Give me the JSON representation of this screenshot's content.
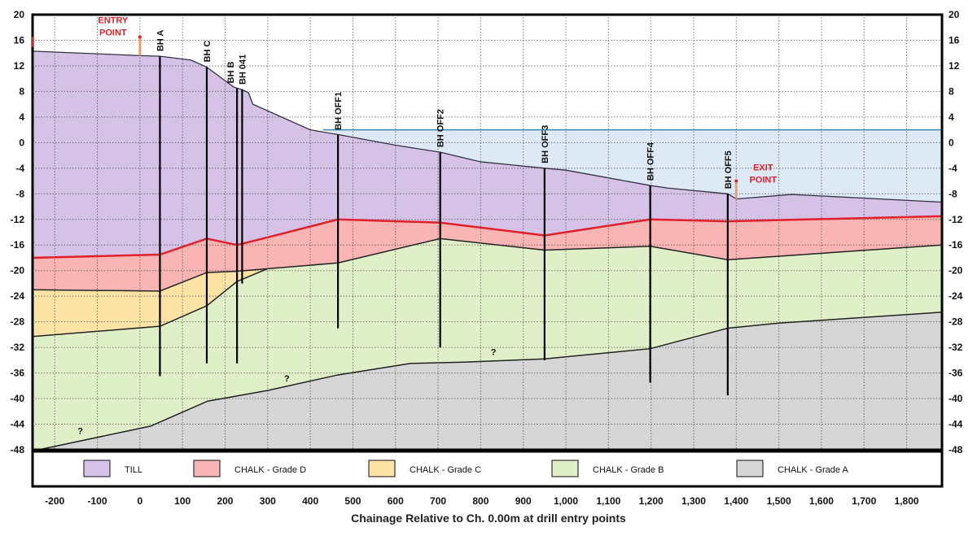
{
  "chart_data": {
    "type": "area",
    "title": "",
    "xlabel": "Chainage Relative to Ch. 0.00m at drill entry points",
    "ylabel": "",
    "xlim": [
      -252,
      1883
    ],
    "ylim": [
      -48,
      20
    ],
    "grid": true,
    "x_ticks": [
      -200,
      -100,
      0,
      100,
      200,
      300,
      400,
      500,
      600,
      700,
      800,
      900,
      1000,
      1100,
      1200,
      1300,
      1400,
      1500,
      1600,
      1700,
      1800
    ],
    "x_tick_labels": [
      "-200",
      "-100",
      "0",
      "100",
      "200",
      "300",
      "400",
      "500",
      "600",
      "700",
      "800",
      "900",
      "1,000",
      "1,100",
      "1,200",
      "1,300",
      "1,400",
      "1,500",
      "1,600",
      "1,700",
      "1,800"
    ],
    "y_ticks": [
      20,
      16,
      12,
      8,
      4,
      0,
      -4,
      -8,
      -12,
      -16,
      -20,
      -24,
      -28,
      -32,
      -36,
      -40,
      -44,
      -48
    ],
    "legend_position": "bottom",
    "water_level": 2,
    "water_start": 430,
    "colors": {
      "water": "#dde9f5",
      "water_line": "#3b87b3",
      "boundary": "#222222",
      "chalk_d_top": "#e0202a",
      "marker": "#e8a070",
      "label_red": "#e0202a"
    },
    "boundaries": {
      "ground": [
        [
          -252,
          14.3
        ],
        [
          0,
          13.6
        ],
        [
          47,
          13.5
        ],
        [
          120,
          12.9
        ],
        [
          157,
          11.8
        ],
        [
          220,
          8.7
        ],
        [
          228,
          8.5
        ],
        [
          240,
          8.3
        ],
        [
          255,
          7.8
        ],
        [
          265,
          6.0
        ],
        [
          400,
          2.0
        ],
        [
          470,
          1.2
        ],
        [
          600,
          -0.4
        ],
        [
          705,
          -1.5
        ],
        [
          800,
          -3.0
        ],
        [
          950,
          -4.0
        ],
        [
          1000,
          -4.3
        ],
        [
          1198,
          -6.7
        ],
        [
          1240,
          -7.1
        ],
        [
          1380,
          -8.0
        ],
        [
          1400,
          -8.8
        ],
        [
          1530,
          -8.1
        ],
        [
          1883,
          -9.3
        ]
      ],
      "till_base": [
        [
          -252,
          -18.0
        ],
        [
          47,
          -17.5
        ],
        [
          157,
          -15.0
        ],
        [
          228,
          -16.0
        ],
        [
          300,
          -14.8
        ],
        [
          465,
          -12.0
        ],
        [
          705,
          -12.5
        ],
        [
          950,
          -14.5
        ],
        [
          1198,
          -12.0
        ],
        [
          1380,
          -12.3
        ],
        [
          1883,
          -11.5
        ]
      ],
      "chalk_d_base": [
        [
          -252,
          -23.0
        ],
        [
          47,
          -23.2
        ],
        [
          157,
          -20.3
        ],
        [
          228,
          -20.1
        ],
        [
          300,
          -19.7
        ],
        [
          465,
          -18.8
        ],
        [
          705,
          -15.0
        ],
        [
          950,
          -16.8
        ],
        [
          1198,
          -16.2
        ],
        [
          1380,
          -18.3
        ],
        [
          1883,
          -16.0
        ]
      ],
      "chalk_c_base": [
        [
          -252,
          -30.3
        ],
        [
          47,
          -28.7
        ],
        [
          157,
          -25.5
        ],
        [
          228,
          -21.7
        ],
        [
          300,
          -19.7
        ]
      ],
      "chalk_b_base": [
        [
          -252,
          -48.2
        ],
        [
          25,
          -44.3
        ],
        [
          159,
          -40.4
        ],
        [
          302,
          -38.7
        ],
        [
          465,
          -36.3
        ],
        [
          636,
          -34.5
        ],
        [
          760,
          -34.3
        ],
        [
          950,
          -33.8
        ],
        [
          1198,
          -32.2
        ],
        [
          1380,
          -29.0
        ],
        [
          1500,
          -28.2
        ],
        [
          1883,
          -26.5
        ]
      ]
    },
    "series": [
      {
        "name": "TILL",
        "color": "#d6c2e6"
      },
      {
        "name": "CHALK - Grade D",
        "color": "#f9b4b4"
      },
      {
        "name": "CHALK - Grade C",
        "color": "#fde4a6"
      },
      {
        "name": "CHALK - Grade B",
        "color": "#dff0c8"
      },
      {
        "name": "CHALK - Grade A",
        "color": "#d6d6d6"
      }
    ],
    "boreholes": [
      {
        "name": "BH A",
        "x": 47,
        "top": 13.5,
        "bottom": -36.5
      },
      {
        "name": "BH C",
        "x": 157,
        "top": 11.8,
        "bottom": -34.5
      },
      {
        "name": "BH B",
        "x": 228,
        "top": 8.5,
        "bottom": -34.5
      },
      {
        "name": "BH 041",
        "x": 240,
        "top": 8.3,
        "bottom": -22.0
      },
      {
        "name": "BH OFF1",
        "x": 465,
        "top": 1.2,
        "bottom": -29.0
      },
      {
        "name": "BH OFF2",
        "x": 705,
        "top": -1.5,
        "bottom": -32.0
      },
      {
        "name": "BH OFF3",
        "x": 950,
        "top": -4.0,
        "bottom": -34.0
      },
      {
        "name": "BH OFF4",
        "x": 1198,
        "top": -6.7,
        "bottom": -37.5
      },
      {
        "name": "BH OFF5",
        "x": 1380,
        "top": -8.0,
        "bottom": -39.5
      }
    ],
    "annotations": [
      {
        "text": "ENTRY POINT",
        "lines": [
          "ENTRY",
          "POINT"
        ],
        "x": 0,
        "y_from": 13.6,
        "y_to": 16.5
      },
      {
        "text": "EXIT POINT",
        "lines": [
          "EXIT",
          "POINT"
        ],
        "x": 1400,
        "y_from": -8.8,
        "y_to": -6.0
      }
    ],
    "uncertain_marks": [
      {
        "text": "?",
        "x": -140,
        "y": -45.5
      },
      {
        "text": "?",
        "x": 345,
        "y": -37.3
      },
      {
        "text": "?",
        "x": 830,
        "y": -33.2
      }
    ]
  }
}
